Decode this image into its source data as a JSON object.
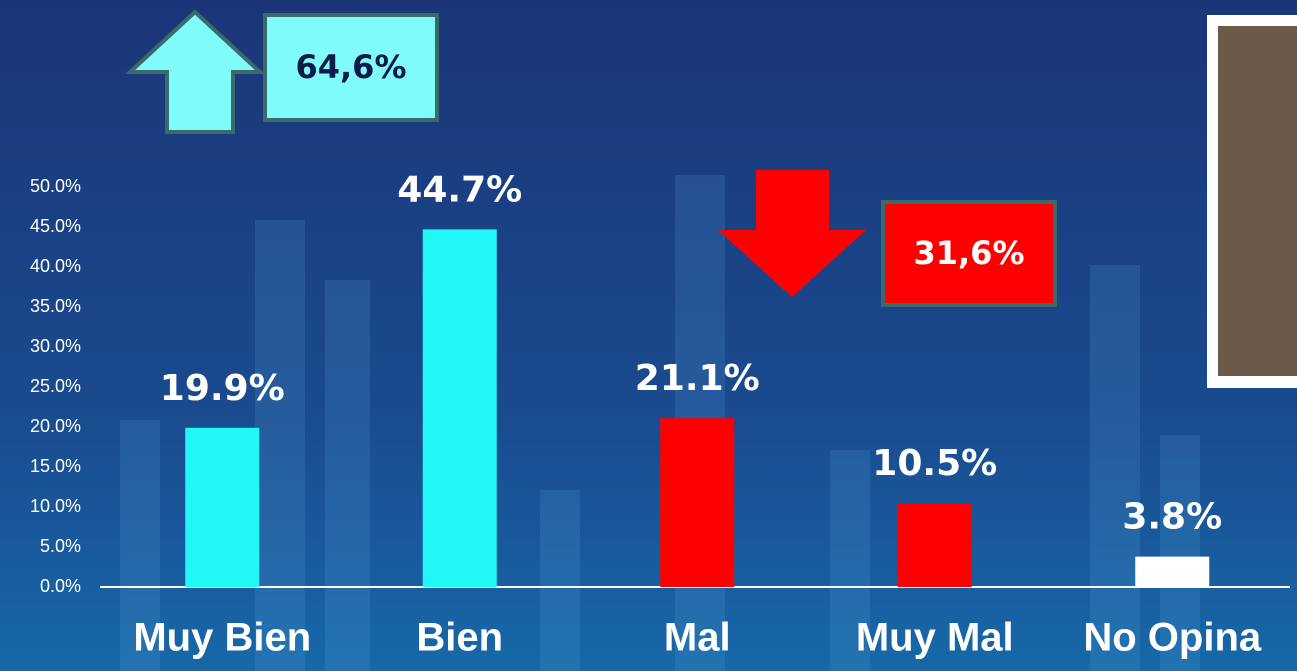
{
  "chart_data": {
    "type": "bar",
    "categories": [
      "Muy Bien",
      "Bien",
      "Mal",
      "Muy Mal",
      "No Opina"
    ],
    "values": [
      19.9,
      44.7,
      21.1,
      10.5,
      3.8
    ],
    "value_labels": [
      "19.9%",
      "44.7%",
      "21.1%",
      "10.5%",
      "3.8%"
    ],
    "colors": [
      "#22f7f7",
      "#22f7f7",
      "#ff0000",
      "#ff0000",
      "#ffffff"
    ],
    "ylim": [
      0,
      50
    ],
    "yticks": [
      {
        "value": 0,
        "label": "0.0%"
      },
      {
        "value": 5,
        "label": "5.0%"
      },
      {
        "value": 10,
        "label": "10.0%"
      },
      {
        "value": 15,
        "label": "15.0%"
      },
      {
        "value": 20,
        "label": "20.0%"
      },
      {
        "value": 25,
        "label": "25.0%"
      },
      {
        "value": 30,
        "label": "30.0%"
      },
      {
        "value": 35,
        "label": "35.0%"
      },
      {
        "value": 40,
        "label": "40.0%"
      },
      {
        "value": 45,
        "label": "45.0%"
      },
      {
        "value": 50,
        "label": "50.0%"
      }
    ],
    "grid": false,
    "annotations": [
      {
        "text": "64,6%"
      },
      {
        "text": "31,6%"
      }
    ]
  }
}
